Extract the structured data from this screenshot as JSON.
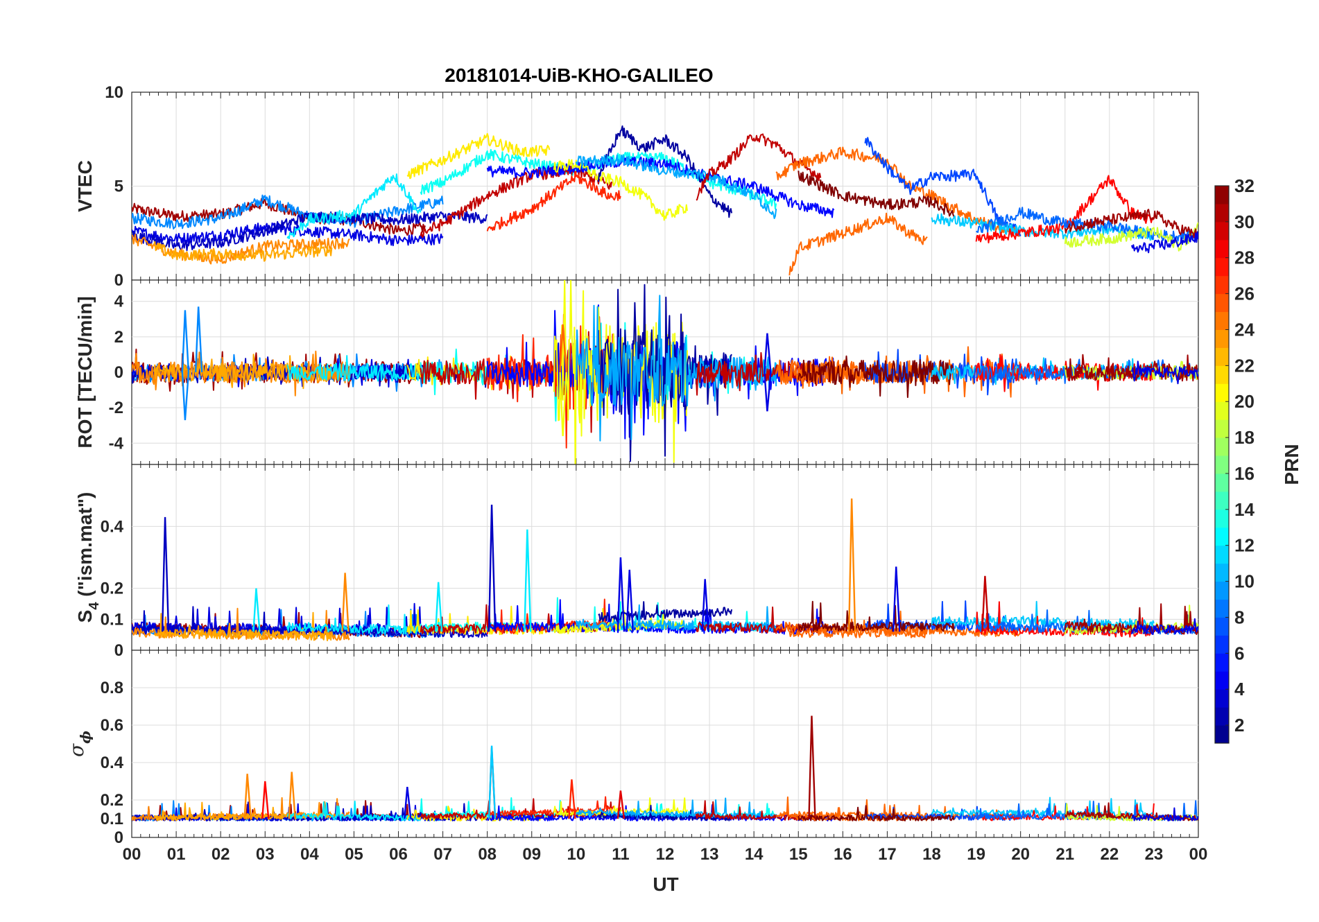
{
  "title": "20181014-UiB-KHO-GALILEO",
  "xlabel": "UT",
  "xticklabels": [
    "00",
    "01",
    "02",
    "03",
    "04",
    "05",
    "06",
    "07",
    "08",
    "09",
    "10",
    "11",
    "12",
    "13",
    "14",
    "15",
    "16",
    "17",
    "18",
    "19",
    "20",
    "21",
    "22",
    "23",
    "00"
  ],
  "panels": [
    {
      "id": "vtec",
      "ylabel": "VTEC",
      "ylim": [
        0,
        10
      ],
      "ticks": [
        0,
        5,
        10
      ],
      "ticklabels": [
        "0",
        "5",
        "10"
      ]
    },
    {
      "id": "rot",
      "ylabel": "ROT [TECU/min]",
      "ylim": [
        -5.2,
        5.2
      ],
      "ticks": [
        -4,
        -2,
        0,
        2,
        4
      ],
      "ticklabels": [
        "-4",
        "-2",
        "0",
        "2",
        "4"
      ]
    },
    {
      "id": "s4",
      "ylabel_main": "S",
      "ylabel_sub": "4",
      "ylabel_rest": " (\"ism.mat\")",
      "ylim": [
        0,
        0.6
      ],
      "ticks": [
        0,
        0.1,
        0.2,
        0.4
      ],
      "ticklabels": [
        "0",
        "0.1",
        "0.2",
        "0.4"
      ]
    },
    {
      "id": "sigma",
      "ylabel_main": "σ",
      "ylabel_sub": "ϕ",
      "ylim": [
        0,
        1
      ],
      "ticks": [
        0,
        0.1,
        0.2,
        0.4,
        0.6,
        0.8
      ],
      "ticklabels": [
        "0",
        "0.1",
        "0.2",
        "0.4",
        "0.6",
        "0.8"
      ]
    }
  ],
  "colorbar": {
    "label": "PRN",
    "range": [
      1,
      32
    ],
    "ticks": [
      2,
      4,
      6,
      8,
      10,
      12,
      14,
      16,
      18,
      20,
      22,
      24,
      26,
      28,
      30,
      32
    ],
    "ticklabels": [
      "2",
      "4",
      "6",
      "8",
      "10",
      "12",
      "14",
      "16",
      "18",
      "20",
      "22",
      "24",
      "26",
      "28",
      "30",
      "32"
    ]
  },
  "chart_data": {
    "type": "line",
    "x_unit": "hour UT",
    "xlim": [
      0,
      24
    ],
    "series": [
      {
        "prn": 31,
        "vtec": [
          [
            0,
            3.8
          ],
          [
            1,
            3.4
          ],
          [
            2,
            3.5
          ],
          [
            3,
            4.1
          ],
          [
            4,
            3.3
          ],
          [
            5,
            3.2
          ],
          [
            6,
            2.6
          ],
          [
            6.6,
            2.8
          ]
        ],
        "rot_amp": 0.6,
        "s4": [
          0.07,
          0.05
        ],
        "sig": [
          0.1,
          0.11
        ]
      },
      {
        "prn": 9,
        "vtec": [
          [
            0,
            3.3
          ],
          [
            1,
            3.0
          ],
          [
            2,
            3.3
          ],
          [
            3,
            4.3
          ],
          [
            4,
            3.4
          ],
          [
            5,
            3.1
          ],
          [
            6,
            3.7
          ],
          [
            7,
            4.2
          ]
        ],
        "rot_amp": 0.5,
        "s4": [
          0.06,
          0.05
        ],
        "sig": [
          0.1,
          0.1
        ]
      },
      {
        "prn": 4,
        "vtec": [
          [
            0,
            2.6
          ],
          [
            1,
            2.2
          ],
          [
            2,
            2.4
          ],
          [
            3,
            2.8
          ],
          [
            4,
            2.6
          ],
          [
            5,
            2.4
          ],
          [
            6,
            2.1
          ],
          [
            7,
            2.2
          ]
        ],
        "rot_amp": 0.4,
        "s4": [
          0.07,
          0.06
        ],
        "sig": [
          0.1,
          0.1
        ]
      },
      {
        "prn": 3,
        "vtec": [
          [
            0,
            2.4
          ],
          [
            1,
            1.8
          ],
          [
            2,
            2.0
          ],
          [
            3,
            2.6
          ],
          [
            4,
            3.4
          ],
          [
            5,
            3.3
          ],
          [
            6,
            3.2
          ],
          [
            7,
            3.4
          ],
          [
            8,
            3.3
          ]
        ],
        "rot_amp": 0.4,
        "s4": [
          0.06,
          0.05
        ],
        "sig": [
          0.1,
          0.1
        ]
      },
      {
        "prn": 24,
        "vtec": [
          [
            0,
            2.2
          ],
          [
            1,
            1.4
          ],
          [
            2,
            1.1
          ],
          [
            3,
            1.8
          ],
          [
            4,
            1.9
          ],
          [
            4.9,
            2.0
          ]
        ],
        "rot_amp": 0.6,
        "s4": [
          0.05,
          0.04
        ],
        "sig": [
          0.1,
          0.12
        ]
      },
      {
        "prn": 23,
        "vtec": [
          [
            0.5,
            1.8
          ],
          [
            1,
            1.3
          ],
          [
            2,
            1.4
          ],
          [
            3,
            1.3
          ],
          [
            4,
            1.5
          ],
          [
            4.5,
            1.6
          ]
        ],
        "rot_amp": 0.5,
        "s4": [
          0.05,
          0.04
        ],
        "sig": [
          0.1,
          0.11
        ]
      },
      {
        "prn": 12,
        "vtec": [
          [
            3.5,
            2.3
          ],
          [
            4,
            3.2
          ],
          [
            5,
            3.5
          ],
          [
            5.9,
            5.6
          ],
          [
            6.2,
            4.6
          ],
          [
            6.5,
            3.4
          ]
        ],
        "rot_amp": 0.5,
        "s4": [
          0.07,
          0.06
        ],
        "sig": [
          0.11,
          0.1
        ]
      },
      {
        "prn": 21,
        "vtec": [
          [
            6.2,
            5.6
          ],
          [
            7,
            6.4
          ],
          [
            8,
            7.5
          ],
          [
            8.8,
            6.8
          ],
          [
            9.4,
            6.9
          ]
        ],
        "rot_amp": 0.5,
        "s4": [
          0.06,
          0.06
        ],
        "sig": [
          0.1,
          0.1
        ]
      },
      {
        "prn": 13,
        "vtec": [
          [
            6.5,
            4.8
          ],
          [
            7,
            5.2
          ],
          [
            8,
            6.7
          ],
          [
            9,
            6.2
          ],
          [
            10,
            5.8
          ],
          [
            11,
            6.5
          ],
          [
            12,
            6.5
          ],
          [
            13,
            5.2
          ],
          [
            14,
            4.5
          ],
          [
            14.5,
            4.0
          ]
        ],
        "rot_amp": 0.6,
        "s4": [
          0.07,
          0.07
        ],
        "sig": [
          0.12,
          0.11
        ]
      },
      {
        "prn": 30,
        "vtec": [
          [
            6.5,
            2.5
          ],
          [
            7,
            3.0
          ],
          [
            8,
            4.5
          ],
          [
            9,
            5.6
          ],
          [
            10,
            5.8
          ],
          [
            10.8,
            5.0
          ]
        ],
        "rot_amp": 0.7,
        "s4": [
          0.06,
          0.07
        ],
        "sig": [
          0.11,
          0.12
        ]
      },
      {
        "prn": 27,
        "vtec": [
          [
            8,
            2.7
          ],
          [
            9,
            3.8
          ],
          [
            10,
            5.5
          ],
          [
            10.8,
            4.4
          ],
          [
            11,
            4.6
          ]
        ],
        "rot_amp": 1.0,
        "s4": [
          0.06,
          0.08
        ],
        "sig": [
          0.12,
          0.15
        ]
      },
      {
        "prn": 5,
        "vtec": [
          [
            8,
            5.8
          ],
          [
            9,
            5.7
          ],
          [
            10,
            6.0
          ],
          [
            11,
            6.3
          ],
          [
            12,
            6.2
          ],
          [
            13,
            5.5
          ],
          [
            14,
            5.0
          ],
          [
            15,
            4.0
          ],
          [
            15.8,
            3.6
          ]
        ],
        "rot_amp": 0.8,
        "s4": [
          0.07,
          0.06
        ],
        "sig": [
          0.1,
          0.1
        ]
      },
      {
        "prn": 20,
        "vtec": [
          [
            9.5,
            6.0
          ],
          [
            10,
            6.2
          ],
          [
            10.5,
            5.5
          ],
          [
            11,
            5.2
          ],
          [
            11.5,
            4.5
          ],
          [
            12,
            3.4
          ],
          [
            12.5,
            3.9
          ]
        ],
        "rot_amp": 1.3,
        "s4": [
          0.06,
          0.08
        ],
        "sig": [
          0.12,
          0.14
        ]
      },
      {
        "prn": 2,
        "vtec": [
          [
            10.5,
            5.5
          ],
          [
            11,
            8.0
          ],
          [
            11.5,
            7.0
          ],
          [
            12,
            7.5
          ],
          [
            12.5,
            6.5
          ],
          [
            13,
            4.5
          ],
          [
            13.5,
            3.5
          ]
        ],
        "rot_amp": 1.1,
        "s4": [
          0.1,
          0.12
        ],
        "sig": [
          0.11,
          0.1
        ]
      },
      {
        "prn": 10,
        "vtec": [
          [
            10,
            6.3
          ],
          [
            11,
            6.4
          ],
          [
            12,
            5.8
          ],
          [
            13,
            5.6
          ],
          [
            14,
            4.5
          ],
          [
            14.5,
            3.5
          ]
        ],
        "rot_amp": 0.9,
        "s4": [
          0.08,
          0.07
        ],
        "sig": [
          0.13,
          0.11
        ]
      },
      {
        "prn": 30,
        "vtec": [
          [
            12.7,
            4.5
          ],
          [
            13,
            5.6
          ],
          [
            13.5,
            6.5
          ],
          [
            14,
            7.7
          ],
          [
            14.5,
            7.2
          ],
          [
            15,
            6.2
          ],
          [
            15.5,
            5.5
          ]
        ],
        "rot_amp": 0.6,
        "s4": [
          0.07,
          0.06
        ],
        "sig": [
          0.11,
          0.1
        ]
      },
      {
        "prn": 25,
        "vtec": [
          [
            14.8,
            0.3
          ],
          [
            15,
            1.7
          ],
          [
            16,
            2.5
          ],
          [
            17,
            3.3
          ],
          [
            17.5,
            2.5
          ],
          [
            17.9,
            2.0
          ]
        ],
        "rot_amp": 0.6,
        "s4": [
          0.05,
          0.05
        ],
        "sig": [
          0.1,
          0.1
        ]
      },
      {
        "prn": 25,
        "vtec": [
          [
            14.5,
            5.5
          ],
          [
            15,
            6.2
          ],
          [
            16,
            6.8
          ],
          [
            17,
            6.4
          ],
          [
            17.5,
            5.0
          ],
          [
            18,
            4.5
          ],
          [
            19,
            3.2
          ],
          [
            20,
            2.5
          ]
        ],
        "rot_amp": 0.7,
        "s4": [
          0.07,
          0.05
        ],
        "sig": [
          0.12,
          0.11
        ]
      },
      {
        "prn": 7,
        "vtec": [
          [
            16.5,
            7.5
          ],
          [
            17,
            6.0
          ],
          [
            17.5,
            4.8
          ],
          [
            18,
            5.5
          ],
          [
            19,
            5.6
          ],
          [
            19.5,
            3.2
          ],
          [
            20,
            2.6
          ]
        ],
        "rot_amp": 0.6,
        "s4": [
          0.08,
          0.07
        ],
        "sig": [
          0.11,
          0.1
        ]
      },
      {
        "prn": 32,
        "vtec": [
          [
            15,
            5.6
          ],
          [
            16,
            4.5
          ],
          [
            17,
            4.0
          ],
          [
            18,
            4.2
          ],
          [
            18.5,
            3.5
          ]
        ],
        "rot_amp": 0.7,
        "s4": [
          0.07,
          0.07
        ],
        "sig": [
          0.1,
          0.1
        ]
      },
      {
        "prn": 11,
        "vtec": [
          [
            18,
            3.3
          ],
          [
            19,
            3.0
          ],
          [
            20,
            2.6
          ],
          [
            21,
            2.5
          ],
          [
            22,
            2.7
          ],
          [
            23,
            2.4
          ]
        ],
        "rot_amp": 0.4,
        "s4": [
          0.09,
          0.08
        ],
        "sig": [
          0.13,
          0.12
        ]
      },
      {
        "prn": 28,
        "vtec": [
          [
            19,
            2.2
          ],
          [
            20,
            2.5
          ],
          [
            21,
            2.8
          ],
          [
            22,
            5.4
          ],
          [
            22.5,
            3.6
          ],
          [
            23,
            3.1
          ]
        ],
        "rot_amp": 0.5,
        "s4": [
          0.06,
          0.05
        ],
        "sig": [
          0.1,
          0.11
        ]
      },
      {
        "prn": 8,
        "vtec": [
          [
            19,
            2.6
          ],
          [
            20,
            3.6
          ],
          [
            21,
            3.0
          ],
          [
            22,
            2.9
          ],
          [
            23,
            2.4
          ],
          [
            24,
            2.3
          ]
        ],
        "rot_amp": 0.4,
        "s4": [
          0.07,
          0.06
        ],
        "sig": [
          0.11,
          0.1
        ]
      },
      {
        "prn": 19,
        "vtec": [
          [
            21,
            2.0
          ],
          [
            22,
            2.2
          ],
          [
            23,
            2.6
          ],
          [
            23.6,
            1.8
          ],
          [
            24,
            2.8
          ]
        ],
        "rot_amp": 0.4,
        "s4": [
          0.06,
          0.07
        ],
        "sig": [
          0.1,
          0.1
        ]
      },
      {
        "prn": 31,
        "vtec": [
          [
            21,
            2.8
          ],
          [
            22,
            3.2
          ],
          [
            23,
            3.5
          ],
          [
            23.5,
            2.8
          ],
          [
            24,
            2.4
          ]
        ],
        "rot_amp": 0.5,
        "s4": [
          0.07,
          0.06
        ],
        "sig": [
          0.12,
          0.1
        ]
      },
      {
        "prn": 4,
        "vtec": [
          [
            22.5,
            1.6
          ],
          [
            23,
            1.8
          ],
          [
            23.5,
            2.0
          ],
          [
            24,
            2.3
          ]
        ],
        "rot_amp": 0.3,
        "s4": [
          0.06,
          0.06
        ],
        "sig": [
          0.1,
          0.1
        ]
      }
    ],
    "annotations": {
      "rot_spikes": [
        [
          1.2,
          3.5,
          9
        ],
        [
          1.5,
          3.7,
          9
        ],
        [
          1.2,
          -2.7,
          9
        ],
        [
          9.7,
          2.7,
          25
        ],
        [
          9.7,
          -3.6,
          20
        ],
        [
          14.3,
          2.2,
          4
        ],
        [
          14.3,
          -2.2,
          4
        ]
      ],
      "s4_spikes": [
        [
          0.75,
          0.43,
          3
        ],
        [
          8.1,
          0.47,
          3
        ],
        [
          8.9,
          0.39,
          12
        ],
        [
          16.2,
          0.49,
          24
        ],
        [
          2.8,
          0.2,
          12
        ],
        [
          4.8,
          0.25,
          24
        ],
        [
          11.0,
          0.3,
          4
        ],
        [
          11.2,
          0.26,
          4
        ],
        [
          12.9,
          0.23,
          4
        ],
        [
          17.2,
          0.27,
          4
        ],
        [
          19.2,
          0.24,
          30
        ],
        [
          6.9,
          0.22,
          12
        ]
      ],
      "sigma_spikes": [
        [
          8.1,
          0.48,
          29
        ],
        [
          8.1,
          0.49,
          11
        ],
        [
          15.3,
          0.65,
          31
        ],
        [
          2.6,
          0.34,
          24
        ],
        [
          3.6,
          0.35,
          24
        ],
        [
          3.0,
          0.3,
          28
        ],
        [
          9.9,
          0.31,
          27
        ],
        [
          11.0,
          0.25,
          29
        ],
        [
          6.2,
          0.27,
          4
        ]
      ]
    }
  }
}
